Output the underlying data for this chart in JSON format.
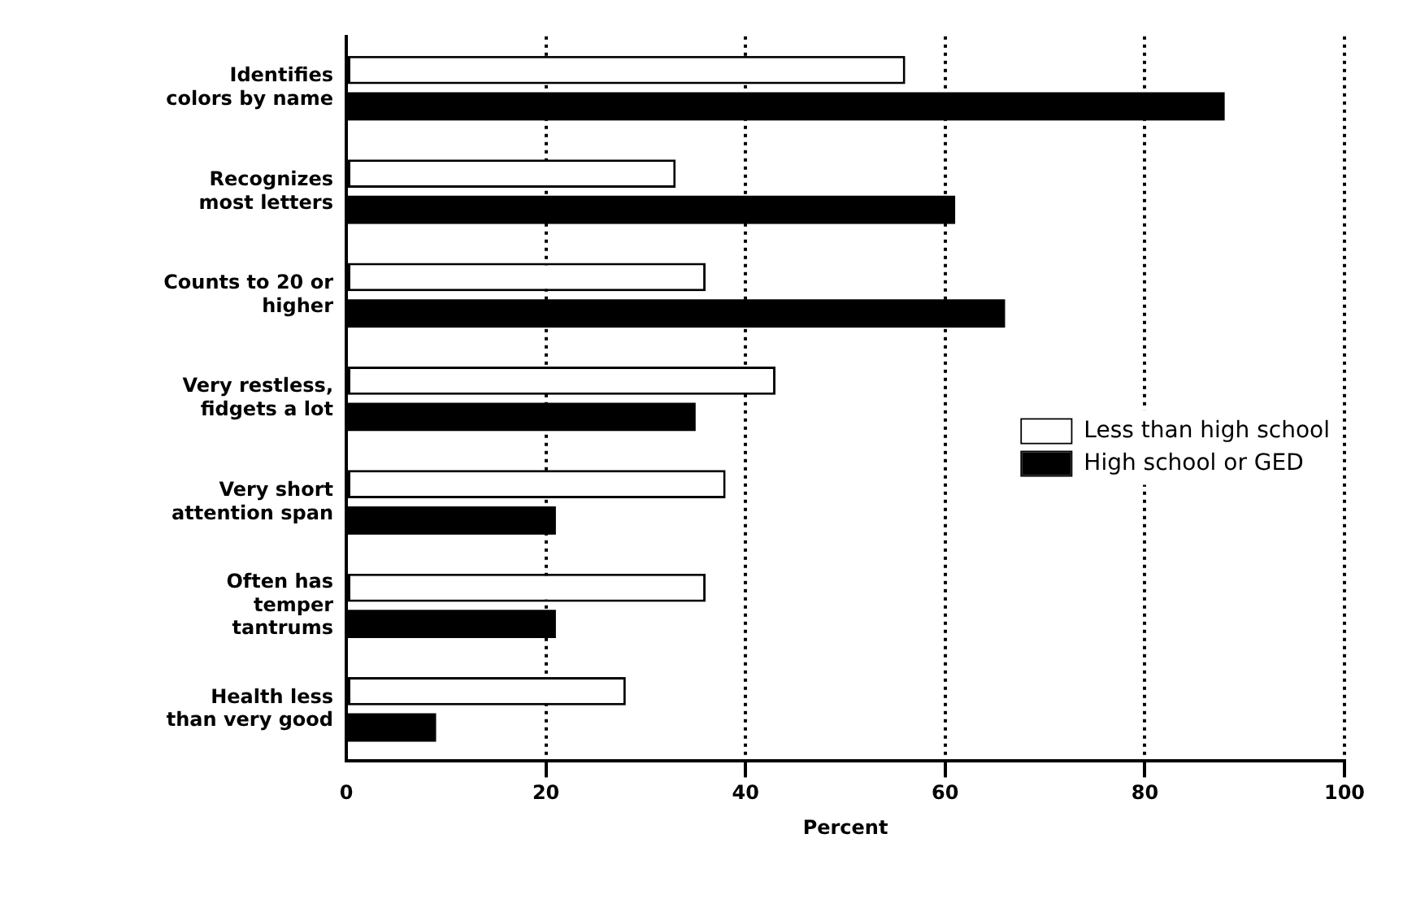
{
  "chart_data": {
    "type": "bar",
    "orientation": "horizontal",
    "xlabel": "Percent",
    "categories": [
      "Identifies colors by name",
      "Recognizes most letters",
      "Counts to 20 or higher",
      "Very restless, fidgets a lot",
      "Very short attention span",
      "Often has temper tantrums",
      "Health less than very good"
    ],
    "series": [
      {
        "name": "Less than high school",
        "color": "#ffffff",
        "values": [
          56,
          33,
          36,
          43,
          38,
          36,
          28
        ]
      },
      {
        "name": "High school or GED",
        "color": "#000000",
        "values": [
          88,
          61,
          66,
          35,
          21,
          21,
          9
        ]
      }
    ],
    "xlim": [
      0,
      100
    ],
    "xticks": [
      0,
      20,
      40,
      60,
      80,
      100
    ],
    "grid": "x",
    "legend": "right"
  }
}
